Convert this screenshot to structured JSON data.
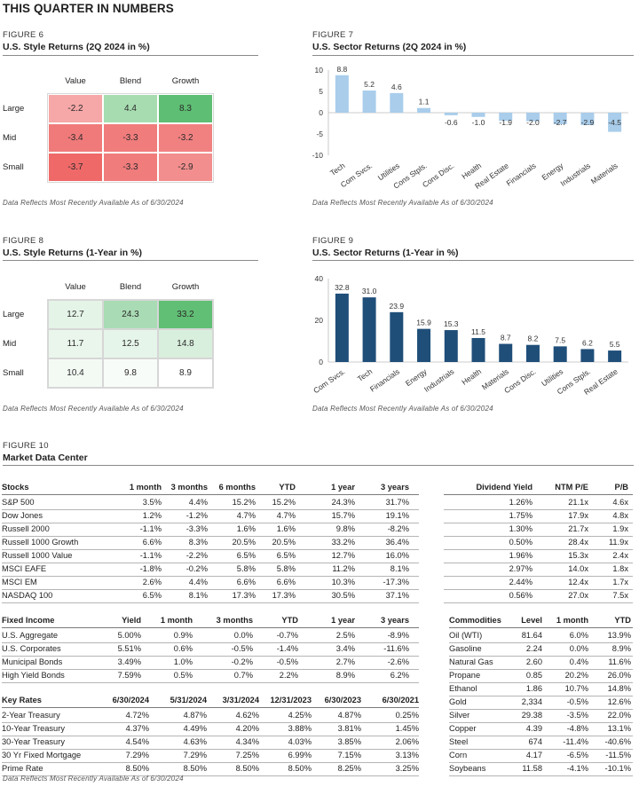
{
  "page_title": "THIS QUARTER IN NUMBERS",
  "footnote": "Data Reflects Most Recently Available As of 6/30/2024",
  "fig6": {
    "label": "FIGURE 6",
    "title": "U.S. Style Returns (2Q 2024 in %)",
    "cols": [
      "Value",
      "Blend",
      "Growth"
    ],
    "rows": [
      {
        "name": "Large",
        "values": [
          "-2.2",
          "4.4",
          "8.3"
        ],
        "colors": [
          "#f6a7a7",
          "#a7dcb1",
          "#5ebe73"
        ]
      },
      {
        "name": "Mid",
        "values": [
          "-3.4",
          "-3.3",
          "-3.2"
        ],
        "colors": [
          "#f07a7a",
          "#f07c7c",
          "#f18181"
        ]
      },
      {
        "name": "Small",
        "values": [
          "-3.7",
          "-3.3",
          "-2.9"
        ],
        "colors": [
          "#ef6969",
          "#f07c7c",
          "#f28e8e"
        ]
      }
    ]
  },
  "fig7": {
    "label": "FIGURE 7",
    "title": "U.S. Sector Returns (2Q 2024 in %)"
  },
  "fig8": {
    "label": "FIGURE 8",
    "title": "U.S. Style Returns (1-Year in %)",
    "cols": [
      "Value",
      "Blend",
      "Growth"
    ],
    "rows": [
      {
        "name": "Large",
        "values": [
          "12.7",
          "24.3",
          "33.2"
        ],
        "colors": [
          "#e4f4e7",
          "#a9dcb4",
          "#61bf75"
        ]
      },
      {
        "name": "Mid",
        "values": [
          "11.7",
          "12.5",
          "14.8"
        ],
        "colors": [
          "#eaf6ec",
          "#e6f5e9",
          "#d9efdd"
        ]
      },
      {
        "name": "Small",
        "values": [
          "10.4",
          "9.8",
          "8.9"
        ],
        "colors": [
          "#f3faf4",
          "#f8fcf8",
          "#ffffff"
        ]
      }
    ]
  },
  "fig9": {
    "label": "FIGURE 9",
    "title": "U.S. Sector Returns (1-Year in %)"
  },
  "fig10": {
    "label": "FIGURE 10",
    "title": "Market Data Center"
  },
  "chart_data": [
    {
      "type": "bar",
      "title": "U.S. Sector Returns (2Q 2024 in %)",
      "categories": [
        "Tech",
        "Com Svcs.",
        "Utilities",
        "Cons Stpls.",
        "Cons Disc.",
        "Health",
        "Real Estate",
        "Financials",
        "Energy",
        "Industrials",
        "Materials"
      ],
      "values": [
        8.8,
        5.2,
        4.6,
        1.1,
        -0.6,
        -1.0,
        -1.9,
        -2.0,
        -2.7,
        -2.9,
        -4.5
      ],
      "value_labels": [
        "8.8",
        "5.2",
        "4.6",
        "1.1",
        "-0.6",
        "-1.0",
        "-1.9",
        "-2.0",
        "-2.7",
        "-2.9",
        "-4.5"
      ],
      "ylim": [
        -10,
        10
      ],
      "yticks": [
        -10,
        -5,
        0,
        5,
        10
      ],
      "bar_color": "#a9cdeb",
      "xlabel": "",
      "ylabel": ""
    },
    {
      "type": "bar",
      "title": "U.S. Sector Returns (1-Year in %)",
      "categories": [
        "Com Svcs.",
        "Tech",
        "Financials",
        "Energy",
        "Industrials",
        "Health",
        "Materials",
        "Cons Disc.",
        "Utilities",
        "Cons Stpls.",
        "Real Estate"
      ],
      "values": [
        32.8,
        31.0,
        23.9,
        15.9,
        15.3,
        11.5,
        8.7,
        8.2,
        7.5,
        6.2,
        5.5
      ],
      "value_labels": [
        "32.8",
        "31.0",
        "23.9",
        "15.9",
        "15.3",
        "11.5",
        "8.7",
        "8.2",
        "7.5",
        "6.2",
        "5.5"
      ],
      "ylim": [
        0,
        40
      ],
      "yticks": [
        0,
        20,
        40
      ],
      "bar_color": "#1f4e79",
      "xlabel": "",
      "ylabel": ""
    }
  ],
  "stocks": {
    "headers": [
      "Stocks",
      "1 month",
      "3 months",
      "6 months",
      "YTD",
      "1 year",
      "3 years"
    ],
    "rows": [
      [
        "S&P 500",
        "3.5%",
        "4.4%",
        "15.2%",
        "15.2%",
        "24.3%",
        "31.7%"
      ],
      [
        "Dow Jones",
        "1.2%",
        "-1.2%",
        "4.7%",
        "4.7%",
        "15.7%",
        "19.1%"
      ],
      [
        "Russell 2000",
        "-1.1%",
        "-3.3%",
        "1.6%",
        "1.6%",
        "9.8%",
        "-8.2%"
      ],
      [
        "Russell 1000 Growth",
        "6.6%",
        "8.3%",
        "20.5%",
        "20.5%",
        "33.2%",
        "36.4%"
      ],
      [
        "Russell 1000 Value",
        "-1.1%",
        "-2.2%",
        "6.5%",
        "6.5%",
        "12.7%",
        "16.0%"
      ],
      [
        "MSCI EAFE",
        "-1.8%",
        "-0.2%",
        "5.8%",
        "5.8%",
        "11.2%",
        "8.1%"
      ],
      [
        "MSCI EM",
        "2.6%",
        "4.4%",
        "6.6%",
        "6.6%",
        "10.3%",
        "-17.3%"
      ],
      [
        "NASDAQ 100",
        "6.5%",
        "8.1%",
        "17.3%",
        "17.3%",
        "30.5%",
        "37.1%"
      ]
    ]
  },
  "valuations": {
    "headers": [
      "Dividend Yield",
      "NTM P/E",
      "P/B"
    ],
    "rows": [
      [
        "1.26%",
        "21.1x",
        "4.6x"
      ],
      [
        "1.75%",
        "17.9x",
        "4.8x"
      ],
      [
        "1.30%",
        "21.7x",
        "1.9x"
      ],
      [
        "0.50%",
        "28.4x",
        "11.9x"
      ],
      [
        "1.96%",
        "15.3x",
        "2.4x"
      ],
      [
        "2.97%",
        "14.0x",
        "1.8x"
      ],
      [
        "2.44%",
        "12.4x",
        "1.7x"
      ],
      [
        "0.56%",
        "27.0x",
        "7.5x"
      ]
    ]
  },
  "fixed_income": {
    "headers": [
      "Fixed Income",
      "Yield",
      "1 month",
      "3 months",
      "YTD",
      "1 year",
      "3 years"
    ],
    "rows": [
      [
        "U.S. Aggregate",
        "5.00%",
        "0.9%",
        "0.0%",
        "-0.7%",
        "2.5%",
        "-8.9%"
      ],
      [
        "U.S. Corporates",
        "5.51%",
        "0.6%",
        "-0.5%",
        "-1.4%",
        "3.4%",
        "-11.6%"
      ],
      [
        "Municipal Bonds",
        "3.49%",
        "1.0%",
        "-0.2%",
        "-0.5%",
        "2.7%",
        "-2.6%"
      ],
      [
        "High Yield Bonds",
        "7.59%",
        "0.5%",
        "0.7%",
        "2.2%",
        "8.9%",
        "6.2%"
      ]
    ]
  },
  "key_rates": {
    "headers": [
      "Key Rates",
      "6/30/2024",
      "5/31/2024",
      "3/31/2024",
      "12/31/2023",
      "6/30/2023",
      "6/30/2021"
    ],
    "rows": [
      [
        "2-Year Treasury",
        "4.72%",
        "4.87%",
        "4.62%",
        "4.25%",
        "4.87%",
        "0.25%"
      ],
      [
        "10-Year Treasury",
        "4.37%",
        "4.49%",
        "4.20%",
        "3.88%",
        "3.81%",
        "1.45%"
      ],
      [
        "30-Year Treasury",
        "4.54%",
        "4.63%",
        "4.34%",
        "4.03%",
        "3.85%",
        "2.06%"
      ],
      [
        "30 Yr Fixed Mortgage",
        "7.29%",
        "7.29%",
        "7.25%",
        "6.99%",
        "7.15%",
        "3.13%"
      ],
      [
        "Prime Rate",
        "8.50%",
        "8.50%",
        "8.50%",
        "8.50%",
        "8.25%",
        "3.25%"
      ]
    ]
  },
  "commodities": {
    "headers": [
      "Commodities",
      "Level",
      "1 month",
      "YTD"
    ],
    "rows": [
      [
        "Oil (WTI)",
        "81.64",
        "6.0%",
        "13.9%"
      ],
      [
        "Gasoline",
        "2.24",
        "0.0%",
        "8.9%"
      ],
      [
        "Natural Gas",
        "2.60",
        "0.4%",
        "11.6%"
      ],
      [
        "Propane",
        "0.85",
        "20.2%",
        "26.0%"
      ],
      [
        "Ethanol",
        "1.86",
        "10.7%",
        "14.8%"
      ],
      [
        "Gold",
        "2,334",
        "-0.5%",
        "12.6%"
      ],
      [
        "Silver",
        "29.38",
        "-3.5%",
        "22.0%"
      ],
      [
        "Copper",
        "4.39",
        "-4.8%",
        "13.1%"
      ],
      [
        "Steel",
        "674",
        "-11.4%",
        "-40.6%"
      ],
      [
        "Corn",
        "4.17",
        "-6.5%",
        "-11.5%"
      ],
      [
        "Soybeans",
        "11.58",
        "-4.1%",
        "-10.1%"
      ]
    ]
  }
}
